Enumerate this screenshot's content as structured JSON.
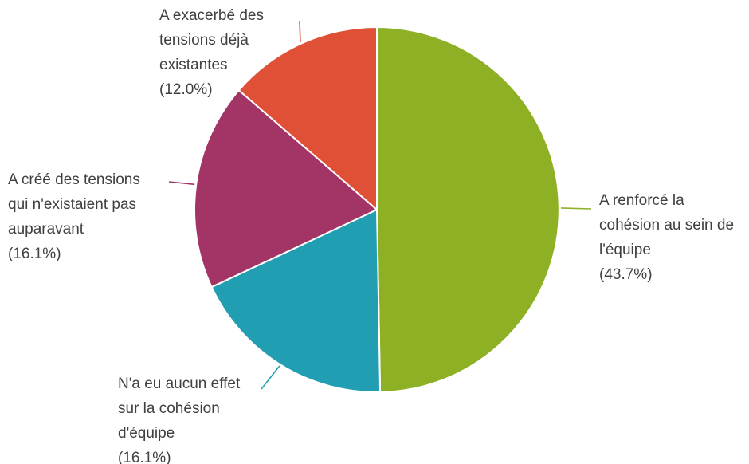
{
  "chart_data": {
    "type": "pie",
    "title": "",
    "start_angle_deg": 0,
    "direction": "clockwise",
    "slices": [
      {
        "label": "A renforcé la cohésion au sein de l'équipe",
        "label_lines": [
          "A renforcé la",
          "cohésion au sein de",
          "l'équipe"
        ],
        "value": 43.7,
        "value_text": "(43.7%)",
        "color": "#8db024"
      },
      {
        "label": "N'a eu aucun effet sur la cohésion d'équipe",
        "label_lines": [
          "N'a eu aucun effet",
          "sur la cohésion",
          "d'équipe"
        ],
        "value": 16.1,
        "value_text": "(16.1%)",
        "color": "#229eb3"
      },
      {
        "label": "A créé des tensions qui n'existaient pas auparavant",
        "label_lines": [
          "A créé des tensions",
          "qui n'existaient pas",
          "auparavant"
        ],
        "value": 16.1,
        "value_text": "(16.1%)",
        "color": "#a23566"
      },
      {
        "label": "A exacerbé des tensions déjà existantes",
        "label_lines": [
          "A exacerbé des",
          "tensions déjà",
          "existantes"
        ],
        "value": 12.0,
        "value_text": "(12.0%)",
        "color": "#e05036"
      }
    ]
  }
}
